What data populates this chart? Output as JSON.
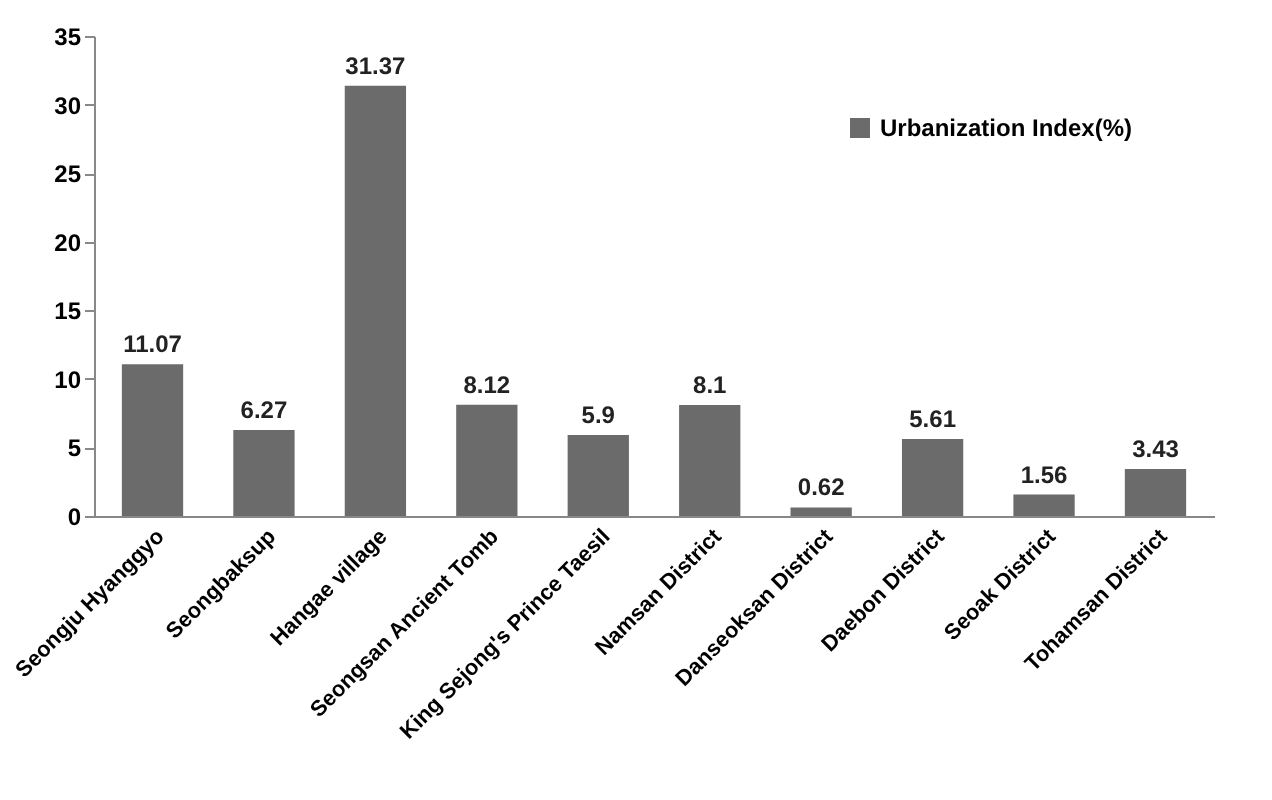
{
  "chart_data": {
    "type": "bar",
    "categories": [
      "Seongju Hyanggyo",
      "Seongbaksup",
      "Hangae village",
      "Seongsan Ancient  Tomb",
      "King Sejong's Prince Taesil",
      "Namsan District",
      "Danseoksan District",
      "Daebon District",
      "Seoak District",
      "Tohamsan District"
    ],
    "series": [
      {
        "name": "Urbanization Index(%)",
        "color": "#6b6b6b",
        "values": [
          11.07,
          6.27,
          31.37,
          8.12,
          5.9,
          8.1,
          0.62,
          5.61,
          1.56,
          3.43
        ]
      }
    ],
    "ylim": [
      0,
      35
    ],
    "yticks": [
      0,
      5,
      10,
      15,
      20,
      25,
      30,
      35
    ],
    "data_labels": true,
    "grid": false,
    "legend": "top right"
  }
}
